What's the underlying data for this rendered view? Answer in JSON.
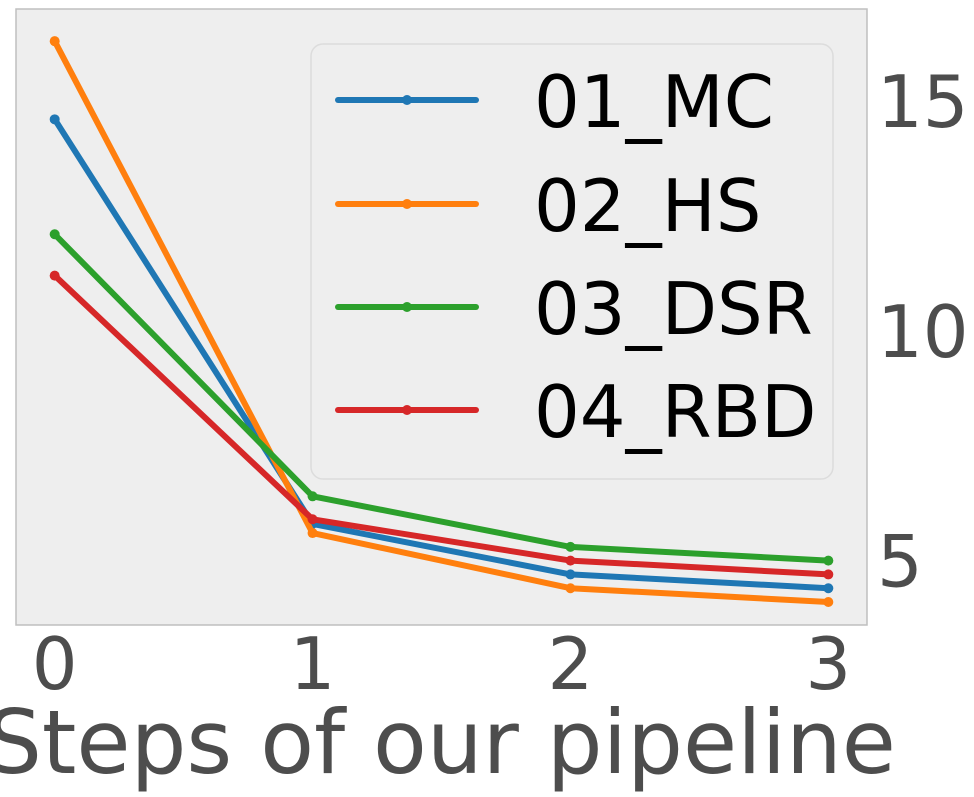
{
  "chart_data": {
    "type": "line",
    "title": "",
    "xlabel": "Steps of our pipeline",
    "ylabel": "",
    "x": [
      0,
      1,
      2,
      3
    ],
    "x_ticks": [
      "0",
      "1",
      "2",
      "3"
    ],
    "y_ticks": [
      "5",
      "10",
      "15"
    ],
    "xlim": [
      -0.15,
      3.15
    ],
    "ylim": [
      3.6,
      17.0
    ],
    "y_axis_side": "right",
    "grid": false,
    "legend_position": "upper-right",
    "background_color": "#eeeeee",
    "series": [
      {
        "name": "01_MC",
        "color": "#1f77b4",
        "values": [
          14.6,
          5.8,
          4.7,
          4.4
        ]
      },
      {
        "name": "02_HS",
        "color": "#ff7f0e",
        "values": [
          16.3,
          5.6,
          4.4,
          4.1
        ]
      },
      {
        "name": "03_DSR",
        "color": "#2ca02c",
        "values": [
          12.1,
          6.4,
          5.3,
          5.0
        ]
      },
      {
        "name": "04_RBD",
        "color": "#d62728",
        "values": [
          11.2,
          5.9,
          5.0,
          4.7
        ]
      }
    ]
  }
}
